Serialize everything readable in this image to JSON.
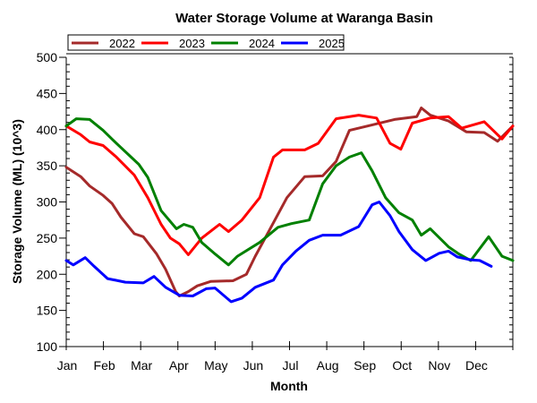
{
  "chart_data": {
    "type": "line",
    "title": "Water Storage Volume at Waranga Basin",
    "xlabel": "Month",
    "ylabel": "Storage Volume (ML) (10^3)",
    "x_tick_labels": [
      "Jan",
      "Feb",
      "Mar",
      "Apr",
      "May",
      "Jun",
      "Jul",
      "Aug",
      "Sep",
      "Oct",
      "Nov",
      "Dec"
    ],
    "xlim": [
      0,
      12
    ],
    "ylim": [
      100,
      500
    ],
    "y_ticks": [
      100,
      150,
      200,
      250,
      300,
      350,
      400,
      450,
      500
    ],
    "grid": false,
    "legend_position": "top-left",
    "x_unit": "months since Jan 1",
    "series": [
      {
        "name": "2022",
        "color": "#a52a2a",
        "points": [
          [
            0,
            348
          ],
          [
            0.39,
            335
          ],
          [
            0.63,
            322
          ],
          [
            0.99,
            309
          ],
          [
            1.23,
            298
          ],
          [
            1.47,
            279
          ],
          [
            1.83,
            256
          ],
          [
            2.07,
            252
          ],
          [
            2.43,
            228
          ],
          [
            2.67,
            207
          ],
          [
            2.94,
            176
          ],
          [
            3.04,
            170
          ],
          [
            3.28,
            176
          ],
          [
            3.52,
            184
          ],
          [
            3.88,
            190
          ],
          [
            4.48,
            191
          ],
          [
            4.84,
            200
          ],
          [
            5.08,
            225
          ],
          [
            5.45,
            260
          ],
          [
            5.93,
            306
          ],
          [
            6.41,
            335
          ],
          [
            6.89,
            336
          ],
          [
            7.25,
            356
          ],
          [
            7.61,
            399
          ],
          [
            8.1,
            405
          ],
          [
            8.82,
            414
          ],
          [
            9.42,
            418
          ],
          [
            9.54,
            430
          ],
          [
            9.78,
            420
          ],
          [
            10.27,
            412
          ],
          [
            10.75,
            397
          ],
          [
            11.23,
            396
          ],
          [
            11.59,
            384
          ],
          [
            12,
            405
          ]
        ]
      },
      {
        "name": "2023",
        "color": "#ff0000",
        "points": [
          [
            0,
            405
          ],
          [
            0.39,
            393
          ],
          [
            0.63,
            383
          ],
          [
            0.99,
            378
          ],
          [
            1.35,
            362
          ],
          [
            1.83,
            337
          ],
          [
            2.19,
            306
          ],
          [
            2.55,
            269
          ],
          [
            2.8,
            250
          ],
          [
            3.04,
            242
          ],
          [
            3.28,
            227
          ],
          [
            3.64,
            250
          ],
          [
            4.12,
            269
          ],
          [
            4.36,
            259
          ],
          [
            4.72,
            275
          ],
          [
            5.2,
            306
          ],
          [
            5.57,
            362
          ],
          [
            5.81,
            372
          ],
          [
            6.41,
            372
          ],
          [
            6.77,
            381
          ],
          [
            7.25,
            415
          ],
          [
            7.86,
            420
          ],
          [
            8.34,
            416
          ],
          [
            8.7,
            381
          ],
          [
            8.99,
            373
          ],
          [
            9.3,
            409
          ],
          [
            9.78,
            416
          ],
          [
            10.27,
            418
          ],
          [
            10.63,
            402
          ],
          [
            11.23,
            411
          ],
          [
            11.71,
            387
          ],
          [
            12,
            405
          ]
        ]
      },
      {
        "name": "2024",
        "color": "#008000",
        "points": [
          [
            0,
            405
          ],
          [
            0.27,
            415
          ],
          [
            0.63,
            414
          ],
          [
            0.99,
            399
          ],
          [
            1.35,
            381
          ],
          [
            1.95,
            352
          ],
          [
            2.19,
            334
          ],
          [
            2.55,
            288
          ],
          [
            2.96,
            263
          ],
          [
            3.16,
            269
          ],
          [
            3.4,
            265
          ],
          [
            3.64,
            244
          ],
          [
            4.0,
            228
          ],
          [
            4.36,
            213
          ],
          [
            4.6,
            225
          ],
          [
            5.2,
            244
          ],
          [
            5.69,
            265
          ],
          [
            6.05,
            270
          ],
          [
            6.53,
            275
          ],
          [
            6.89,
            325
          ],
          [
            7.25,
            350
          ],
          [
            7.61,
            362
          ],
          [
            7.93,
            368
          ],
          [
            8.22,
            343
          ],
          [
            8.58,
            306
          ],
          [
            8.94,
            285
          ],
          [
            9.3,
            275
          ],
          [
            9.54,
            254
          ],
          [
            9.78,
            263
          ],
          [
            10.27,
            238
          ],
          [
            10.55,
            228
          ],
          [
            10.87,
            219
          ],
          [
            11.35,
            252
          ],
          [
            11.71,
            225
          ],
          [
            12,
            219
          ]
        ]
      },
      {
        "name": "2025",
        "color": "#0000ff",
        "points": [
          [
            0,
            219
          ],
          [
            0.19,
            213
          ],
          [
            0.51,
            223
          ],
          [
            0.75,
            211
          ],
          [
            1.11,
            194
          ],
          [
            1.59,
            189
          ],
          [
            2.07,
            188
          ],
          [
            2.36,
            197
          ],
          [
            2.67,
            182
          ],
          [
            3.04,
            171
          ],
          [
            3.4,
            170
          ],
          [
            3.76,
            180
          ],
          [
            4.0,
            181
          ],
          [
            4.43,
            162
          ],
          [
            4.72,
            167
          ],
          [
            5.08,
            182
          ],
          [
            5.57,
            192
          ],
          [
            5.81,
            213
          ],
          [
            6.17,
            232
          ],
          [
            6.53,
            247
          ],
          [
            6.89,
            254
          ],
          [
            7.37,
            254
          ],
          [
            7.86,
            266
          ],
          [
            8.22,
            296
          ],
          [
            8.41,
            300
          ],
          [
            8.7,
            281
          ],
          [
            8.94,
            259
          ],
          [
            9.3,
            234
          ],
          [
            9.66,
            219
          ],
          [
            10.02,
            229
          ],
          [
            10.27,
            232
          ],
          [
            10.51,
            224
          ],
          [
            10.87,
            220
          ],
          [
            11.11,
            219
          ],
          [
            11.42,
            211
          ]
        ]
      }
    ]
  }
}
